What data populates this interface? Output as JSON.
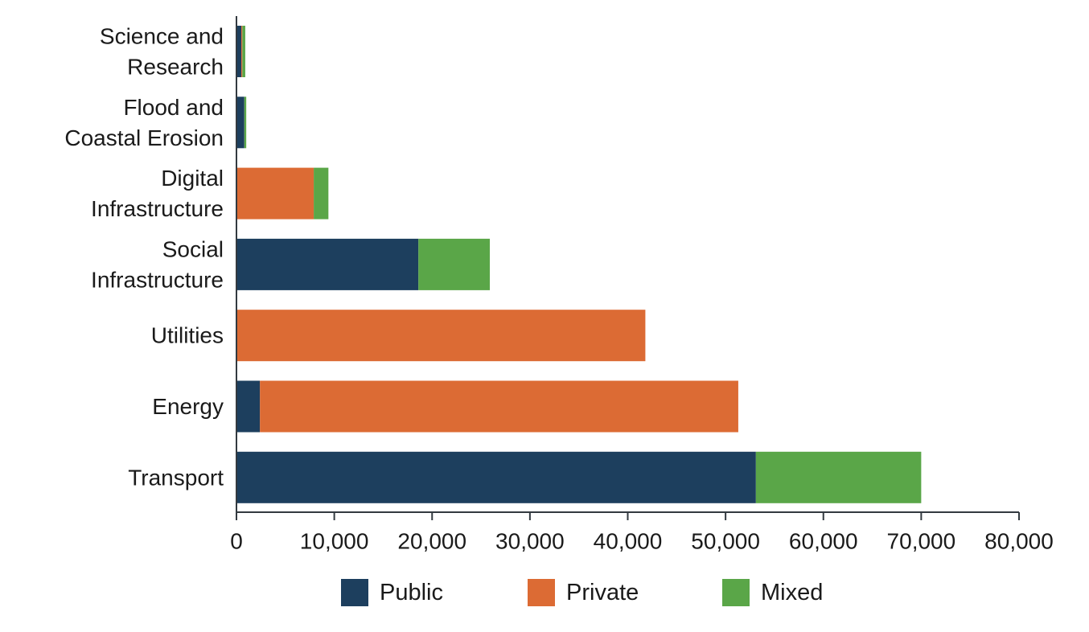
{
  "chart_data": {
    "type": "bar",
    "orientation": "horizontal",
    "stacked": true,
    "title": "",
    "xlabel": "",
    "ylabel": "",
    "categories": [
      [
        "Science and",
        "Research"
      ],
      [
        "Flood and",
        "Coastal Erosion"
      ],
      [
        "Digital",
        "Infrastructure"
      ],
      [
        "Social",
        "Infrastructure"
      ],
      [
        "Utilities"
      ],
      [
        "Energy"
      ],
      [
        "Transport"
      ]
    ],
    "series": [
      {
        "name": "Public",
        "color": "#1d3f5e",
        "values": [
          500,
          800,
          0,
          18600,
          0,
          2400,
          53100
        ]
      },
      {
        "name": "Private",
        "color": "#dc6b34",
        "values": [
          100,
          0,
          7900,
          0,
          41800,
          48900,
          0
        ]
      },
      {
        "name": "Mixed",
        "color": "#5aa648",
        "values": [
          300,
          200,
          1500,
          7300,
          0,
          0,
          16900
        ]
      }
    ],
    "xlim": [
      0,
      80000
    ],
    "xticks": [
      0,
      10000,
      20000,
      30000,
      40000,
      50000,
      60000,
      70000,
      80000
    ],
    "xtick_labels": [
      "0",
      "10,000",
      "20,000",
      "30,000",
      "40,000",
      "50,000",
      "60,000",
      "70,000",
      "80,000"
    ],
    "grid": false,
    "legend_position": "bottom"
  }
}
